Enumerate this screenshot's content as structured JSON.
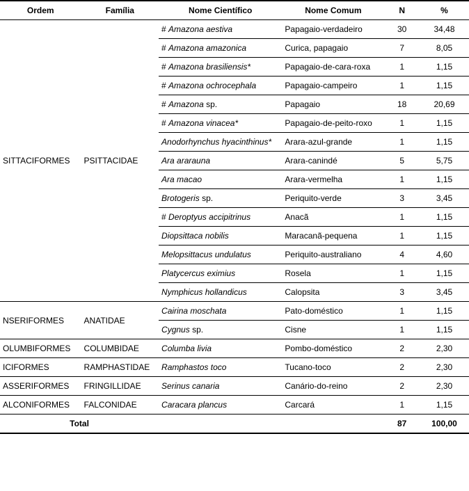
{
  "columns": {
    "ordem": "Ordem",
    "familia": "Família",
    "cientifico": "Nome Científico",
    "comum": "Nome Comum",
    "n": "N",
    "pct": "%"
  },
  "groups": [
    {
      "ordem": "SITTACIFORMES",
      "familia": "PSITTACIDAE",
      "rows": [
        {
          "hash": true,
          "sci": "Amazona aestiva",
          "comum": "Papagaio-verdadeiro",
          "n": "30",
          "pct": "34,48"
        },
        {
          "hash": true,
          "sci": "Amazona amazonica",
          "comum": "Curica, papagaio",
          "n": "7",
          "pct": "8,05"
        },
        {
          "hash": true,
          "sci": "Amazona brasiliensis*",
          "comum": "Papagaio-de-cara-roxa",
          "n": "1",
          "pct": "1,15"
        },
        {
          "hash": true,
          "sci": "Amazona ochrocephala",
          "comum": "Papagaio-campeiro",
          "n": "1",
          "pct": "1,15"
        },
        {
          "hash": true,
          "sci": "Amazona",
          "sp": "sp.",
          "comum": "Papagaio",
          "n": "18",
          "pct": "20,69"
        },
        {
          "hash": true,
          "sci": "Amazona vinacea*",
          "comum": "Papagaio-de-peito-roxo",
          "n": "1",
          "pct": "1,15"
        },
        {
          "hash": false,
          "sci": "Anodorhynchus hyacinthinus*",
          "comum": "Arara-azul-grande",
          "n": "1",
          "pct": "1,15"
        },
        {
          "hash": false,
          "sci": "Ara ararauna",
          "comum": "Arara-canindé",
          "n": "5",
          "pct": "5,75"
        },
        {
          "hash": false,
          "sci": "Ara macao",
          "comum": "Arara-vermelha",
          "n": "1",
          "pct": "1,15"
        },
        {
          "hash": false,
          "sci": "Brotogeris",
          "sp": "sp.",
          "comum": "Periquito-verde",
          "n": "3",
          "pct": "3,45"
        },
        {
          "hash": true,
          "sci": "Deroptyus accipitrinus",
          "comum": "Anacã",
          "n": "1",
          "pct": "1,15"
        },
        {
          "hash": false,
          "sci": "Diopsittaca nobilis",
          "comum": "Maracanã-pequena",
          "n": "1",
          "pct": "1,15"
        },
        {
          "hash": false,
          "sci": "Melopsittacus undulatus",
          "comum": "Periquito-australiano",
          "n": "4",
          "pct": "4,60"
        },
        {
          "hash": false,
          "sci": "Platycercus eximius",
          "comum": "Rosela",
          "n": "1",
          "pct": "1,15"
        },
        {
          "hash": false,
          "sci": "Nymphicus hollandicus",
          "comum": "Calopsita",
          "n": "3",
          "pct": "3,45"
        }
      ]
    },
    {
      "ordem": "NSERIFORMES",
      "familia": "ANATIDAE",
      "rows": [
        {
          "hash": false,
          "sci": "Cairina moschata",
          "comum": "Pato-doméstico",
          "n": "1",
          "pct": "1,15"
        },
        {
          "hash": false,
          "sci": "Cygnus",
          "sp": "sp.",
          "comum": "Cisne",
          "n": "1",
          "pct": "1,15"
        }
      ]
    },
    {
      "ordem": "OLUMBIFORMES",
      "familia": "COLUMBIDAE",
      "rows": [
        {
          "hash": false,
          "sci": "Columba livia",
          "comum": "Pombo-doméstico",
          "n": "2",
          "pct": "2,30"
        }
      ]
    },
    {
      "ordem": "ICIFORMES",
      "familia": "RAMPHASTIDAE",
      "rows": [
        {
          "hash": false,
          "sci": "Ramphastos toco",
          "comum": "Tucano-toco",
          "n": "2",
          "pct": "2,30"
        }
      ]
    },
    {
      "ordem": "ASSERIFORMES",
      "familia": "FRINGILLIDAE",
      "rows": [
        {
          "hash": false,
          "sci": "Serinus canaria",
          "comum": "Canário-do-reino",
          "n": "2",
          "pct": "2,30"
        }
      ]
    },
    {
      "ordem": "ALCONIFORMES",
      "familia": "FALCONIDAE",
      "rows": [
        {
          "hash": false,
          "sci": "Caracara plancus",
          "comum": "Carcará",
          "n": "1",
          "pct": "1,15"
        }
      ]
    }
  ],
  "total": {
    "label": "Total",
    "n": "87",
    "pct": "100,00"
  }
}
